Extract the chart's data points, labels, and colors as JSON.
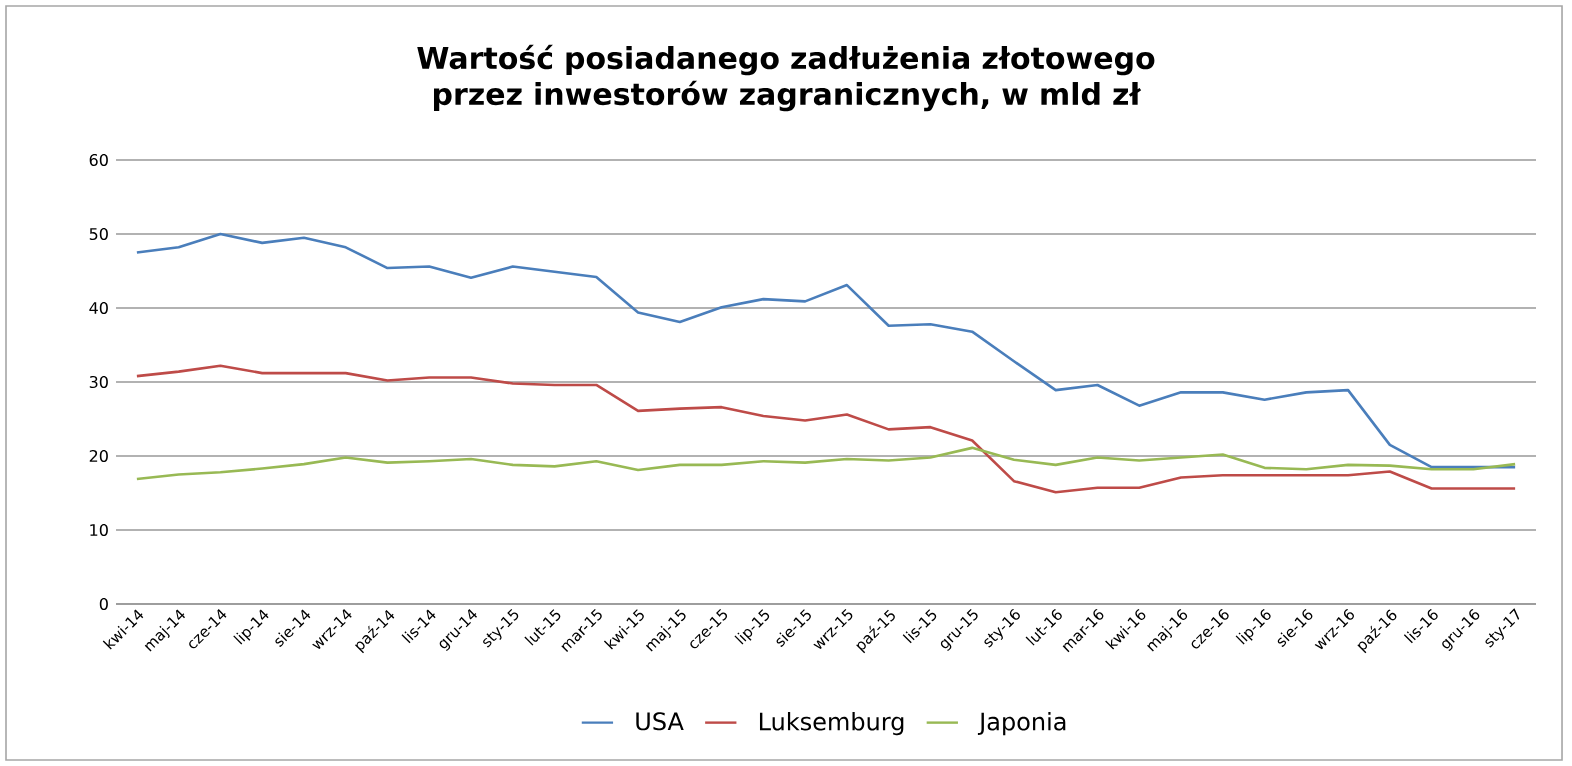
{
  "chart_data": {
    "type": "line",
    "title": "Wartość posiadanego zadłużenia złotowego przez inwestorów zagranicznych, w mld zł",
    "categories": [
      "kwi-14",
      "maj-14",
      "cze-14",
      "lip-14",
      "sie-14",
      "wrz-14",
      "paź-14",
      "lis-14",
      "gru-14",
      "sty-15",
      "lut-15",
      "mar-15",
      "kwi-15",
      "maj-15",
      "cze-15",
      "lip-15",
      "sie-15",
      "wrz-15",
      "paź-15",
      "lis-15",
      "gru-15",
      "sty-16",
      "lut-16",
      "mar-16",
      "kwi-16",
      "maj-16",
      "cze-16",
      "lip-16",
      "sie-16",
      "wrz-16",
      "paź-16",
      "lis-16",
      "gru-16",
      "sty-17"
    ],
    "series": [
      {
        "name": "USA",
        "color": "#4a7ebb",
        "values": [
          47.5,
          48.2,
          50,
          48.8,
          49.5,
          48.2,
          45.4,
          45.6,
          44.1,
          45.6,
          44.9,
          44.2,
          39.4,
          38.1,
          40.1,
          41.2,
          40.9,
          43.1,
          37.6,
          37.8,
          36.8,
          32.8,
          28.9,
          29.6,
          26.8,
          28.6,
          28.6,
          27.6,
          28.6,
          28.9,
          21.5,
          18.5,
          18.5,
          18.5
        ]
      },
      {
        "name": "Luksemburg",
        "color": "#be4b48",
        "values": [
          30.8,
          31.4,
          32.2,
          31.2,
          31.2,
          31.2,
          30.2,
          30.6,
          30.6,
          29.8,
          29.6,
          29.6,
          26.1,
          26.4,
          26.6,
          25.4,
          24.8,
          25.6,
          23.6,
          23.9,
          22.1,
          16.6,
          15.1,
          15.7,
          15.7,
          17.1,
          17.4,
          17.4,
          17.4,
          17.4,
          17.9,
          15.6,
          15.6,
          15.6
        ]
      },
      {
        "name": "Japonia",
        "color": "#98b954",
        "values": [
          16.9,
          17.5,
          17.8,
          18.3,
          18.9,
          19.8,
          19.1,
          19.3,
          19.6,
          18.8,
          18.6,
          19.3,
          18.1,
          18.8,
          18.8,
          19.3,
          19.1,
          19.6,
          19.4,
          19.8,
          21.1,
          19.5,
          18.8,
          19.8,
          19.4,
          19.8,
          20.2,
          18.4,
          18.2,
          18.8,
          18.7,
          18.2,
          18.2,
          18.9
        ]
      }
    ],
    "ylim": [
      0,
      60
    ],
    "yticks": [
      0,
      10,
      20,
      30,
      40,
      50,
      60
    ],
    "grid": "y",
    "legend": "bottom"
  }
}
